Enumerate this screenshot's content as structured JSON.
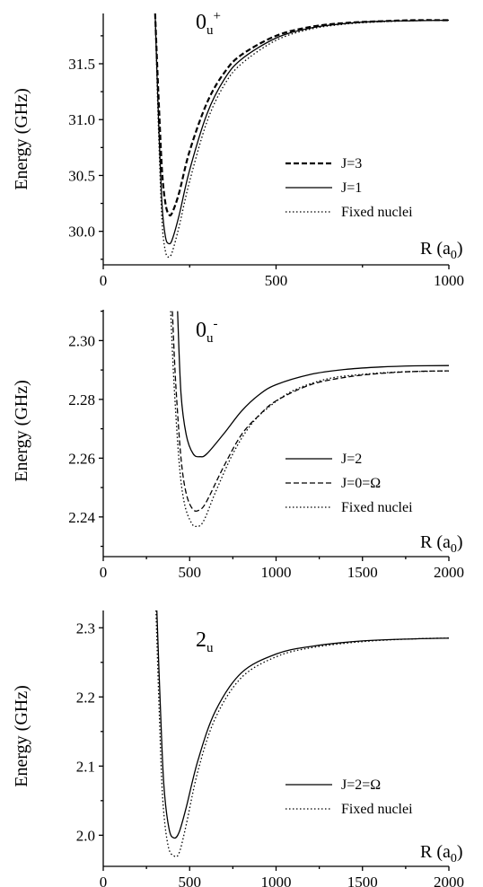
{
  "chart_data": [
    {
      "type": "line",
      "title": "0u+",
      "title_main": "0",
      "title_sub": "u",
      "title_sup": "+",
      "ylabel": "Energy (GHz)",
      "xlabel_main": "R (a",
      "xlabel_sub": "0",
      "xlabel_close": ")",
      "xlim": [
        0,
        1000
      ],
      "ylim": [
        29.7,
        31.95
      ],
      "xticks": [
        0,
        500,
        1000
      ],
      "yticks": [
        30.0,
        30.5,
        31.0,
        31.5
      ],
      "ytick_decimals": 1,
      "legend_position": "center-right",
      "series": [
        {
          "name": "J=3",
          "style": "dashed",
          "width": 2.2,
          "x": [
            150,
            160,
            170,
            180,
            190,
            200,
            220,
            250,
            300,
            350,
            400,
            500,
            600,
            700,
            800,
            900,
            1000
          ],
          "y": [
            31.95,
            31.2,
            30.55,
            30.25,
            30.15,
            30.17,
            30.35,
            30.72,
            31.15,
            31.42,
            31.58,
            31.75,
            31.83,
            31.865,
            31.88,
            31.89,
            31.89
          ]
        },
        {
          "name": "J=1",
          "style": "solid",
          "width": 1.3,
          "x": [
            150,
            160,
            170,
            180,
            190,
            200,
            220,
            250,
            300,
            350,
            400,
            500,
            600,
            700,
            800,
            900,
            1000
          ],
          "y": [
            31.95,
            31.0,
            30.25,
            29.95,
            29.89,
            29.93,
            30.15,
            30.55,
            31.05,
            31.36,
            31.54,
            31.73,
            31.82,
            31.86,
            31.88,
            31.885,
            31.89
          ]
        },
        {
          "name": "Fixed nuclei",
          "style": "dotted",
          "width": 1.3,
          "x": [
            150,
            160,
            170,
            180,
            190,
            200,
            220,
            250,
            300,
            350,
            400,
            500,
            600,
            700,
            800,
            900,
            1000
          ],
          "y": [
            31.95,
            30.9,
            30.1,
            29.82,
            29.77,
            29.82,
            30.05,
            30.45,
            30.98,
            31.31,
            31.5,
            31.71,
            31.81,
            31.855,
            31.875,
            31.885,
            31.89
          ]
        }
      ]
    },
    {
      "type": "line",
      "title": "0u-",
      "title_main": "0",
      "title_sub": "u",
      "title_sup": "-",
      "ylabel": "Energy (GHz)",
      "xlabel_main": "R (a",
      "xlabel_sub": "0",
      "xlabel_close": ")",
      "xlim": [
        0,
        2000
      ],
      "ylim": [
        2.2265,
        2.3105
      ],
      "xticks": [
        0,
        500,
        1000,
        1500,
        2000
      ],
      "yticks": [
        2.24,
        2.26,
        2.28,
        2.3
      ],
      "ytick_decimals": 2,
      "legend_position": "center-right",
      "series": [
        {
          "name": "J=2",
          "style": "solid",
          "width": 1.3,
          "x": [
            430,
            450,
            480,
            520,
            560,
            600,
            700,
            800,
            900,
            1000,
            1200,
            1400,
            1600,
            1800,
            2000
          ],
          "y": [
            2.31,
            2.282,
            2.268,
            2.2615,
            2.2605,
            2.2615,
            2.2685,
            2.276,
            2.2815,
            2.285,
            2.2885,
            2.2902,
            2.291,
            2.2914,
            2.2915
          ]
        },
        {
          "name": "J=0=Ω",
          "style": "dashed",
          "width": 1.3,
          "x": [
            400,
            420,
            450,
            480,
            520,
            560,
            600,
            700,
            800,
            900,
            1000,
            1200,
            1400,
            1600,
            1800,
            2000
          ],
          "y": [
            2.31,
            2.285,
            2.26,
            2.248,
            2.2425,
            2.2425,
            2.2455,
            2.2575,
            2.268,
            2.2745,
            2.2795,
            2.285,
            2.2875,
            2.2888,
            2.2895,
            2.2897
          ]
        },
        {
          "name": "Fixed nuclei",
          "style": "dotted",
          "width": 1.3,
          "x": [
            390,
            410,
            440,
            470,
            510,
            540,
            580,
            650,
            750,
            850,
            950,
            1100,
            1300,
            1500,
            1700,
            2000
          ],
          "y": [
            2.31,
            2.285,
            2.258,
            2.2445,
            2.238,
            2.2368,
            2.2385,
            2.2485,
            2.2615,
            2.271,
            2.277,
            2.283,
            2.287,
            2.2885,
            2.2893,
            2.2897
          ]
        }
      ]
    },
    {
      "type": "line",
      "title": "2u",
      "title_main": "2",
      "title_sub": "u",
      "title_sup": "",
      "ylabel": "Energy (GHz)",
      "xlabel_main": "R (a",
      "xlabel_sub": "0",
      "xlabel_close": ")",
      "xlim": [
        0,
        2000
      ],
      "ylim": [
        1.955,
        2.325
      ],
      "xticks": [
        0,
        500,
        1000,
        1500,
        2000
      ],
      "yticks": [
        2.0,
        2.1,
        2.2,
        2.3
      ],
      "ytick_decimals": 1,
      "legend_position": "bottom-right",
      "series": [
        {
          "name": "J=2=Ω",
          "style": "solid",
          "width": 1.3,
          "x": [
            310,
            330,
            350,
            380,
            410,
            440,
            480,
            550,
            650,
            800,
            1000,
            1200,
            1500,
            1800,
            2000
          ],
          "y": [
            2.325,
            2.19,
            2.075,
            2.01,
            1.996,
            2.005,
            2.04,
            2.11,
            2.18,
            2.235,
            2.262,
            2.273,
            2.281,
            2.284,
            2.285
          ]
        },
        {
          "name": "Fixed nuclei",
          "style": "dotted",
          "width": 1.3,
          "x": [
            305,
            325,
            345,
            375,
            410,
            440,
            480,
            550,
            650,
            800,
            1000,
            1200,
            1500,
            1800,
            2000
          ],
          "y": [
            2.325,
            2.17,
            2.05,
            1.985,
            1.97,
            1.975,
            2.015,
            2.095,
            2.17,
            2.228,
            2.258,
            2.271,
            2.28,
            2.284,
            2.285
          ]
        }
      ]
    }
  ]
}
